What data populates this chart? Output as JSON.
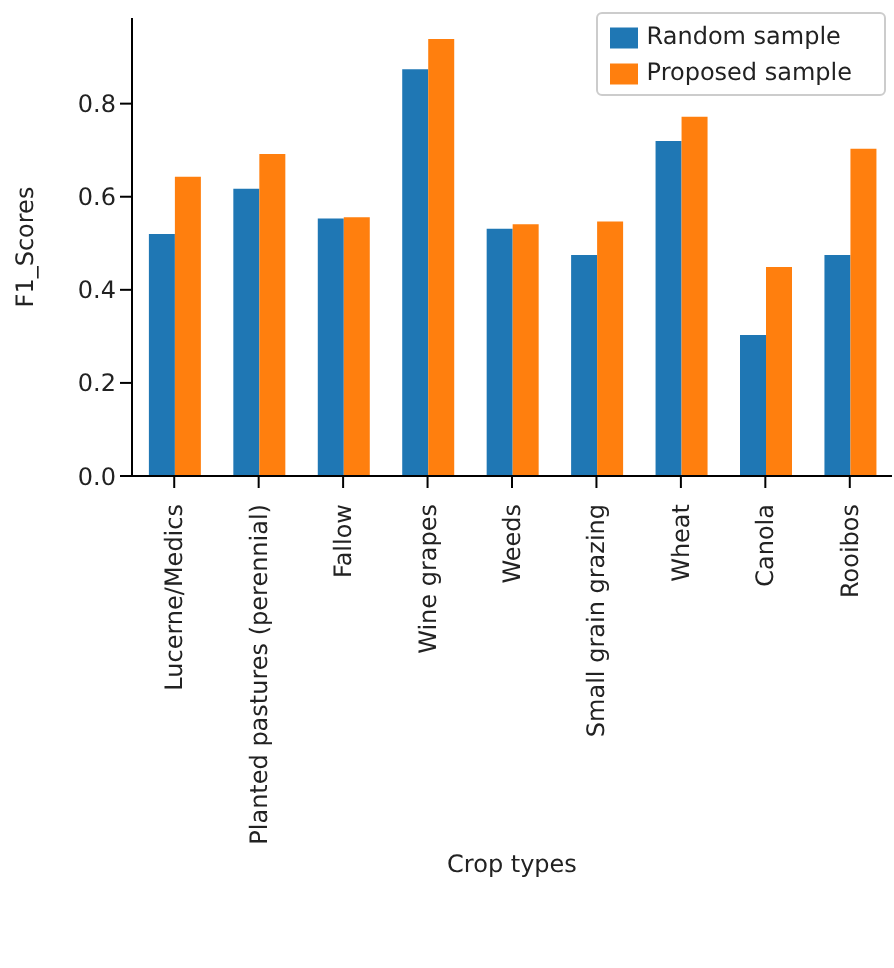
{
  "chart_data": {
    "type": "bar",
    "xlabel": "Crop types",
    "ylabel": "F1_Scores",
    "categories": [
      "Lucerne/Medics",
      "Planted pastures (perennial)",
      "Fallow",
      "Wine grapes",
      "Weeds",
      "Small grain grazing",
      "Wheat",
      "Canola",
      "Rooibos"
    ],
    "series": [
      {
        "name": "Random sample",
        "color": "#1f77b4",
        "values": [
          0.52,
          0.617,
          0.553,
          0.874,
          0.531,
          0.475,
          0.72,
          0.303,
          0.475
        ]
      },
      {
        "name": "Proposed sample",
        "color": "#ff7f0e",
        "values": [
          0.643,
          0.692,
          0.556,
          0.939,
          0.541,
          0.547,
          0.772,
          0.449,
          0.703
        ]
      }
    ],
    "ylim": [
      0,
      0.984
    ],
    "yticks": [
      {
        "value": 0,
        "label": "0.0"
      },
      {
        "value": 0.2,
        "label": "0.2"
      },
      {
        "value": 0.4,
        "label": "0.4"
      },
      {
        "value": 0.6,
        "label": "0.6"
      },
      {
        "value": 0.8,
        "label": "0.8"
      }
    ],
    "grid": false,
    "legend": "top right"
  }
}
